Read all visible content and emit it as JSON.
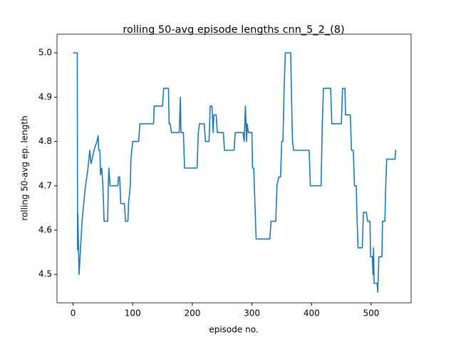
{
  "chart_data": {
    "type": "line",
    "title": "rolling 50-avg episode lengths cnn_5_2_(8)",
    "x_label": "episode no.",
    "y_label": "rolling 50-avg ep. length",
    "color": "#1f77b4",
    "x": [
      0,
      7,
      7.5,
      8,
      9,
      10,
      15,
      20,
      25,
      28,
      30,
      32,
      35,
      40,
      42,
      43,
      45,
      46,
      48,
      50,
      52,
      58,
      59,
      60,
      62,
      75,
      76,
      78,
      80,
      86,
      88,
      92,
      93,
      96,
      97,
      100,
      110,
      112,
      135,
      136,
      150,
      152,
      160,
      161,
      163,
      165,
      178,
      180,
      181,
      185,
      187,
      208,
      210,
      212,
      220,
      222,
      228,
      230,
      233,
      235,
      236,
      240,
      242,
      252,
      254,
      270,
      272,
      285,
      287,
      289,
      291,
      292,
      294,
      300,
      301,
      303,
      305,
      307,
      330,
      332,
      340,
      342,
      345,
      348,
      350,
      352,
      354,
      356,
      365,
      367,
      368,
      370,
      396,
      398,
      416,
      418,
      420,
      432,
      434,
      450,
      452,
      456,
      457,
      465,
      467,
      470,
      472,
      475,
      476,
      478,
      485,
      487,
      492,
      494,
      498,
      499,
      502,
      503,
      504,
      505,
      510,
      511,
      513,
      518,
      519,
      523,
      524,
      526,
      540,
      541,
      542
    ],
    "values": [
      5.0,
      5.0,
      4.556,
      4.636,
      4.56,
      4.5,
      4.62,
      4.69,
      4.74,
      4.78,
      4.75,
      4.76,
      4.78,
      4.8,
      4.813,
      4.78,
      4.78,
      4.725,
      4.74,
      4.7,
      4.62,
      4.62,
      4.7,
      4.74,
      4.7,
      4.7,
      4.72,
      4.72,
      4.66,
      4.66,
      4.62,
      4.62,
      4.66,
      4.7,
      4.76,
      4.8,
      4.8,
      4.84,
      4.84,
      4.88,
      4.88,
      4.92,
      4.92,
      4.84,
      4.84,
      4.82,
      4.82,
      4.9,
      4.82,
      4.82,
      4.74,
      4.74,
      4.82,
      4.84,
      4.84,
      4.8,
      4.8,
      4.88,
      4.88,
      4.82,
      4.86,
      4.86,
      4.82,
      4.82,
      4.78,
      4.78,
      4.82,
      4.82,
      4.8,
      4.88,
      4.8,
      4.84,
      4.82,
      4.82,
      4.74,
      4.74,
      4.66,
      4.58,
      4.58,
      4.62,
      4.62,
      4.7,
      4.72,
      4.72,
      4.8,
      4.8,
      4.92,
      5.0,
      5.0,
      4.86,
      4.8,
      4.78,
      4.78,
      4.7,
      4.7,
      4.84,
      4.92,
      4.92,
      4.84,
      4.84,
      4.92,
      4.92,
      4.86,
      4.86,
      4.78,
      4.78,
      4.7,
      4.7,
      4.64,
      4.56,
      4.56,
      4.64,
      4.64,
      4.62,
      4.62,
      4.54,
      4.54,
      4.5,
      4.56,
      4.48,
      4.48,
      4.46,
      4.54,
      4.54,
      4.62,
      4.62,
      4.68,
      4.76,
      4.76,
      4.78,
      4.78
    ],
    "xlim": [
      -27,
      567
    ],
    "ylim": [
      4.436,
      5.042
    ],
    "xticks": [
      0,
      100,
      200,
      300,
      400,
      500
    ],
    "yticks": [
      4.5,
      4.6,
      4.7,
      4.8,
      4.9,
      {
        "value": 5.0,
        "label": "5.0"
      }
    ]
  }
}
